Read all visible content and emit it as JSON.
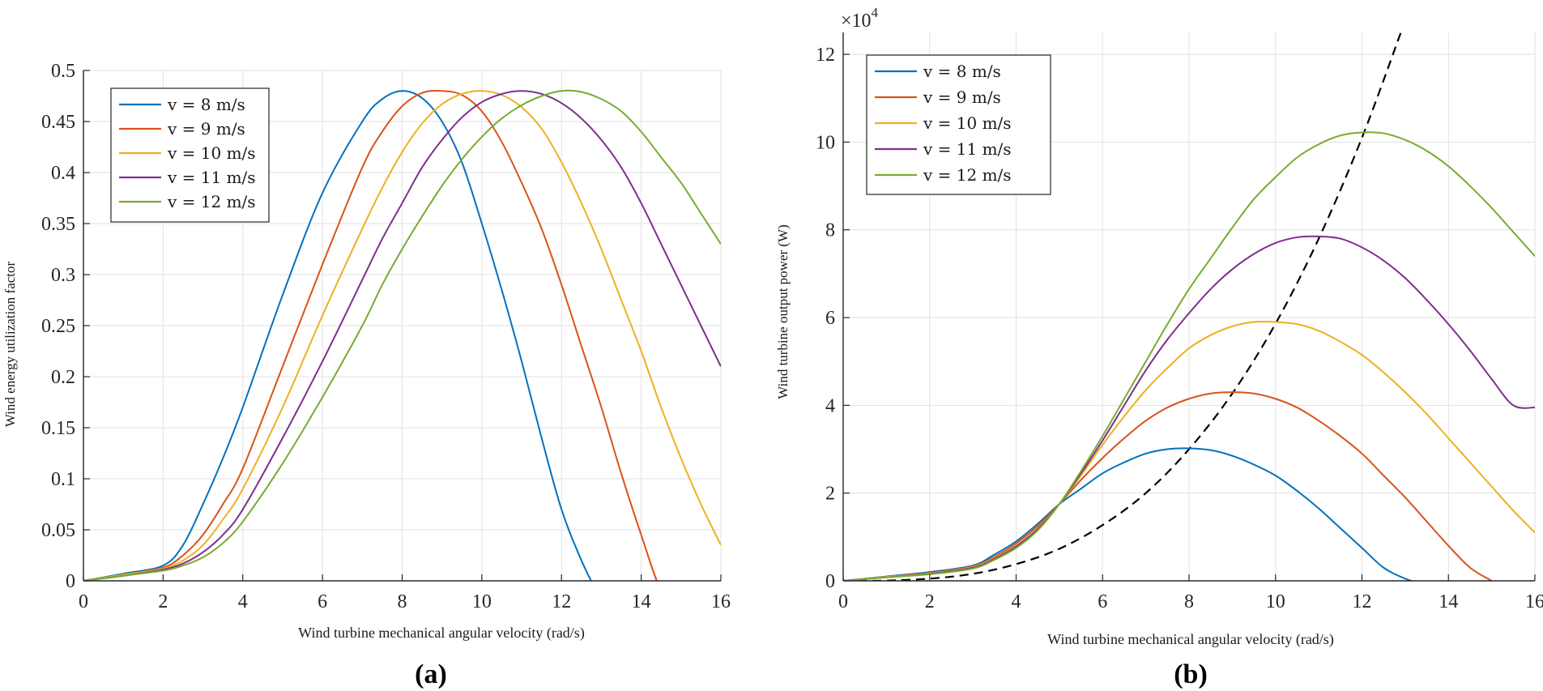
{
  "colors": {
    "v8": "#0072BD",
    "v9": "#D95319",
    "v10": "#EDB120",
    "v11": "#7E2F8E",
    "v12": "#77AC30",
    "mpp": "#000000",
    "grid": "#e1e1e1",
    "axis": "#262626"
  },
  "chart_data": [
    {
      "type": "line",
      "caption": "(a)",
      "title": "",
      "xlabel": "Wind turbine mechanical angular velocity (rad/s)",
      "ylabel": "Wind energy utilization factor",
      "xlim": [
        0,
        16
      ],
      "ylim": [
        0,
        0.5
      ],
      "xticks": [
        "0",
        "2",
        "4",
        "6",
        "8",
        "10",
        "12",
        "14",
        "16"
      ],
      "yticks": [
        "0",
        "0.05",
        "0.1",
        "0.15",
        "0.2",
        "0.25",
        "0.3",
        "0.35",
        "0.4",
        "0.45",
        "0.5"
      ],
      "grid": true,
      "legend_position": "top-left",
      "x": [
        0,
        1,
        2,
        2.5,
        3,
        3.5,
        4,
        5,
        6,
        7,
        7.5,
        8,
        8.5,
        9,
        9.5,
        10,
        10.5,
        11,
        11.5,
        12,
        12.5,
        13,
        13.5,
        14,
        14.5,
        15,
        15.5,
        16
      ],
      "series": [
        {
          "name": "v = 8 m/s",
          "color_key": "v8",
          "values": [
            0,
            0.007,
            0.015,
            0.035,
            0.075,
            0.12,
            0.17,
            0.28,
            0.38,
            0.45,
            0.472,
            0.48,
            0.473,
            0.45,
            0.41,
            0.35,
            0.285,
            0.215,
            0.14,
            0.07,
            0.02,
            -0.02,
            null,
            null,
            null,
            null,
            null,
            null
          ]
        },
        {
          "name": "v = 9 m/s",
          "color_key": "v9",
          "values": [
            0,
            0.006,
            0.013,
            0.025,
            0.045,
            0.075,
            0.11,
            0.21,
            0.31,
            0.405,
            0.44,
            0.465,
            0.478,
            0.48,
            0.476,
            0.46,
            0.43,
            0.39,
            0.345,
            0.29,
            0.23,
            0.17,
            0.105,
            0.045,
            -0.01,
            -0.035,
            null,
            null
          ]
        },
        {
          "name": "v = 10 m/s",
          "color_key": "v10",
          "values": [
            0,
            0.006,
            0.012,
            0.02,
            0.035,
            0.06,
            0.09,
            0.17,
            0.26,
            0.345,
            0.385,
            0.42,
            0.448,
            0.467,
            0.477,
            0.48,
            0.476,
            0.464,
            0.443,
            0.41,
            0.37,
            0.325,
            0.275,
            0.225,
            0.17,
            0.12,
            0.075,
            0.035
          ]
        },
        {
          "name": "v = 11 m/s",
          "color_key": "v11",
          "values": [
            0,
            0.005,
            0.011,
            0.017,
            0.028,
            0.045,
            0.07,
            0.14,
            0.215,
            0.295,
            0.335,
            0.37,
            0.405,
            0.432,
            0.454,
            0.469,
            0.477,
            0.48,
            0.477,
            0.468,
            0.453,
            0.432,
            0.405,
            0.37,
            0.33,
            0.29,
            0.25,
            0.21
          ]
        },
        {
          "name": "v = 12 m/s",
          "color_key": "v12",
          "values": [
            0,
            0.005,
            0.01,
            0.015,
            0.023,
            0.037,
            0.058,
            0.115,
            0.18,
            0.25,
            0.29,
            0.325,
            0.357,
            0.387,
            0.413,
            0.435,
            0.453,
            0.466,
            0.475,
            0.48,
            0.479,
            0.472,
            0.46,
            0.44,
            0.415,
            0.39,
            0.36,
            0.33
          ]
        }
      ]
    },
    {
      "type": "line",
      "caption": "(b)",
      "title": "",
      "xlabel": "Wind turbine mechanical angular velocity (rad/s)",
      "ylabel": "Wind turbine output power (W)",
      "xlim": [
        0,
        16
      ],
      "ylim": [
        0,
        12.5
      ],
      "y_scale_label": "×10",
      "y_scale_exponent": "4",
      "xticks": [
        "0",
        "2",
        "4",
        "6",
        "8",
        "10",
        "12",
        "14",
        "16"
      ],
      "yticks": [
        "0",
        "2",
        "4",
        "6",
        "8",
        "10",
        "12"
      ],
      "grid": true,
      "legend_position": "top-left",
      "x": [
        0,
        1,
        2,
        3,
        3.5,
        4,
        4.5,
        5,
        5.5,
        6,
        6.5,
        7,
        7.5,
        8,
        8.5,
        9,
        9.5,
        10,
        10.5,
        11,
        11.5,
        12,
        12.5,
        13,
        13.5,
        14,
        14.5,
        15,
        15.5,
        16
      ],
      "series": [
        {
          "name": "v = 8 m/s",
          "color_key": "v8",
          "values": [
            0,
            0.1,
            0.2,
            0.35,
            0.6,
            0.9,
            1.3,
            1.75,
            2.1,
            2.45,
            2.7,
            2.9,
            3.0,
            3.02,
            2.98,
            2.85,
            2.65,
            2.4,
            2.05,
            1.65,
            1.2,
            0.75,
            0.3,
            0.05,
            -0.1,
            null,
            null,
            null,
            null,
            null
          ]
        },
        {
          "name": "v = 9 m/s",
          "color_key": "v9",
          "values": [
            0,
            0.09,
            0.18,
            0.33,
            0.55,
            0.85,
            1.25,
            1.75,
            2.3,
            2.8,
            3.25,
            3.65,
            3.95,
            4.15,
            4.27,
            4.3,
            4.27,
            4.15,
            3.95,
            3.65,
            3.3,
            2.9,
            2.4,
            1.9,
            1.35,
            0.8,
            0.3,
            0.0,
            null,
            null
          ]
        },
        {
          "name": "v = 10 m/s",
          "color_key": "v10",
          "values": [
            0,
            0.09,
            0.17,
            0.32,
            0.52,
            0.8,
            1.2,
            1.75,
            2.4,
            3.1,
            3.75,
            4.35,
            4.85,
            5.3,
            5.6,
            5.8,
            5.9,
            5.9,
            5.85,
            5.7,
            5.45,
            5.15,
            4.75,
            4.3,
            3.8,
            3.25,
            2.7,
            2.15,
            1.6,
            1.1
          ]
        },
        {
          "name": "v = 11 m/s",
          "color_key": "v11",
          "values": [
            0,
            0.08,
            0.16,
            0.3,
            0.5,
            0.78,
            1.18,
            1.75,
            2.45,
            3.2,
            4.0,
            4.8,
            5.5,
            6.1,
            6.65,
            7.1,
            7.45,
            7.7,
            7.83,
            7.85,
            7.8,
            7.6,
            7.3,
            6.9,
            6.4,
            5.85,
            5.25,
            4.6,
            4.0,
            3.95
          ]
        },
        {
          "name": "v = 12 m/s",
          "color_key": "v12",
          "values": [
            0,
            0.08,
            0.15,
            0.28,
            0.48,
            0.75,
            1.15,
            1.75,
            2.5,
            3.3,
            4.15,
            5.0,
            5.85,
            6.65,
            7.35,
            8.05,
            8.7,
            9.2,
            9.65,
            9.95,
            10.15,
            10.22,
            10.2,
            10.05,
            9.8,
            9.45,
            9.0,
            8.5,
            7.95,
            7.4
          ]
        }
      ],
      "mpp_curve": {
        "name": "maximum power point curve",
        "style": "dashed",
        "color_key": "mpp",
        "x": [
          0,
          1,
          2,
          3,
          4,
          5,
          6,
          7,
          8,
          9,
          10,
          11,
          12,
          12.9
        ],
        "values": [
          0,
          0.006,
          0.05,
          0.16,
          0.38,
          0.73,
          1.27,
          2.0,
          3.0,
          4.27,
          5.86,
          7.8,
          10.1,
          12.5
        ]
      }
    }
  ]
}
